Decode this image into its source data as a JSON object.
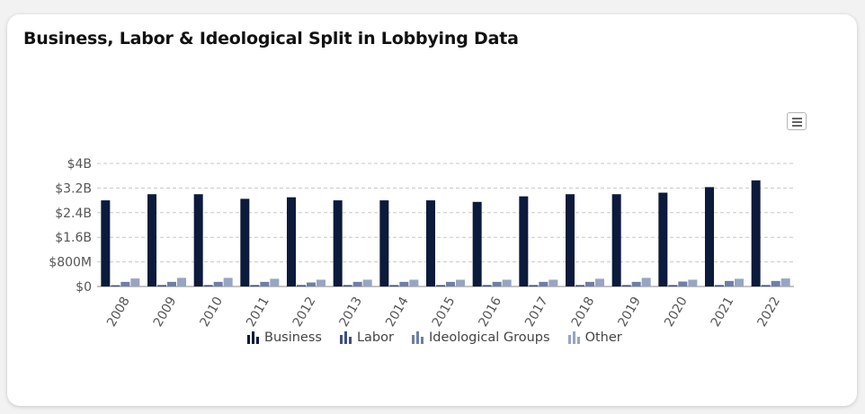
{
  "title": "Business, Labor & Ideological Split in Lobbying Data",
  "menu_icon": "hamburger-menu-icon",
  "colors": {
    "Business": "#0c1a3b",
    "Labor": "#3d4f80",
    "Ideological Groups": "#6f7fa5",
    "Other": "#98a5c2"
  },
  "legend": [
    "Business",
    "Labor",
    "Ideological Groups",
    "Other"
  ],
  "chart_data": {
    "type": "bar",
    "title": "Business, Labor & Ideological Split in Lobbying Data",
    "xlabel": "",
    "ylabel": "",
    "categories": [
      "2008",
      "2009",
      "2010",
      "2011",
      "2012",
      "2013",
      "2014",
      "2015",
      "2016",
      "2017",
      "2018",
      "2019",
      "2020",
      "2021",
      "2022"
    ],
    "ylim": [
      0,
      4000000000
    ],
    "yticks": [
      {
        "value": 0,
        "label": "$0"
      },
      {
        "value": 800000000,
        "label": "$800M"
      },
      {
        "value": 1600000000,
        "label": "$1.6B"
      },
      {
        "value": 2400000000,
        "label": "$2.4B"
      },
      {
        "value": 3200000000,
        "label": "$3.2B"
      },
      {
        "value": 4000000000,
        "label": "$4B"
      }
    ],
    "grid": true,
    "legend_position": "bottom",
    "series": [
      {
        "name": "Business",
        "values": [
          2800000000,
          3000000000,
          3000000000,
          2850000000,
          2900000000,
          2800000000,
          2800000000,
          2800000000,
          2750000000,
          2930000000,
          3000000000,
          3000000000,
          3050000000,
          3230000000,
          3450000000
        ]
      },
      {
        "name": "Labor",
        "values": [
          40000000,
          45000000,
          45000000,
          45000000,
          45000000,
          45000000,
          45000000,
          45000000,
          45000000,
          45000000,
          45000000,
          45000000,
          45000000,
          45000000,
          45000000
        ]
      },
      {
        "name": "Ideological Groups",
        "values": [
          150000000,
          150000000,
          150000000,
          150000000,
          130000000,
          150000000,
          150000000,
          150000000,
          150000000,
          150000000,
          150000000,
          150000000,
          160000000,
          180000000,
          180000000
        ]
      },
      {
        "name": "Other",
        "values": [
          260000000,
          280000000,
          280000000,
          250000000,
          220000000,
          220000000,
          220000000,
          220000000,
          220000000,
          220000000,
          250000000,
          280000000,
          220000000,
          250000000,
          260000000
        ]
      }
    ]
  }
}
